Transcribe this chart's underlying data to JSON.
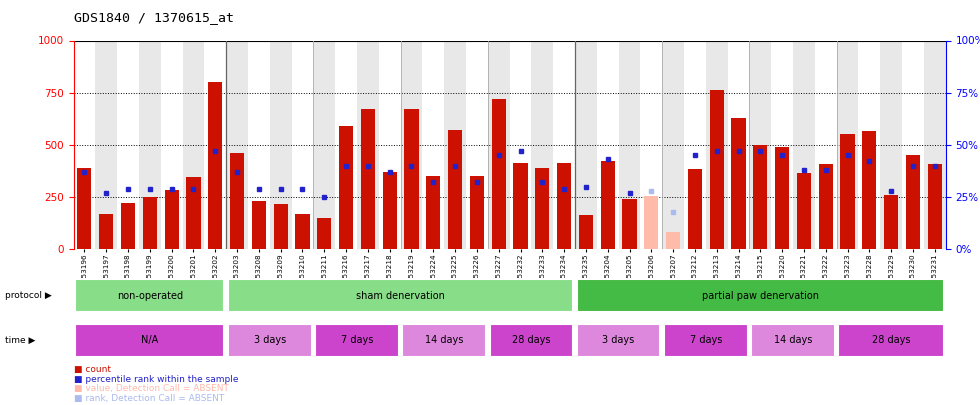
{
  "title": "GDS1840 / 1370615_at",
  "samples": [
    "GSM53196",
    "GSM53197",
    "GSM53198",
    "GSM53199",
    "GSM53200",
    "GSM53201",
    "GSM53202",
    "GSM53203",
    "GSM53208",
    "GSM53209",
    "GSM53210",
    "GSM53211",
    "GSM53216",
    "GSM53217",
    "GSM53218",
    "GSM53219",
    "GSM53224",
    "GSM53225",
    "GSM53226",
    "GSM53227",
    "GSM53232",
    "GSM53233",
    "GSM53234",
    "GSM53235",
    "GSM53204",
    "GSM53205",
    "GSM53206",
    "GSM53207",
    "GSM53212",
    "GSM53213",
    "GSM53214",
    "GSM53215",
    "GSM53220",
    "GSM53221",
    "GSM53222",
    "GSM53223",
    "GSM53228",
    "GSM53229",
    "GSM53230",
    "GSM53231"
  ],
  "count": [
    390,
    170,
    220,
    250,
    285,
    345,
    800,
    460,
    230,
    215,
    170,
    150,
    590,
    670,
    370,
    670,
    350,
    570,
    350,
    720,
    415,
    390,
    415,
    165,
    420,
    240,
    255,
    80,
    385,
    765,
    630,
    500,
    490,
    365,
    410,
    550,
    565,
    260,
    450,
    410
  ],
  "rank": [
    370,
    270,
    290,
    290,
    290,
    290,
    470,
    370,
    290,
    290,
    290,
    250,
    400,
    400,
    370,
    400,
    320,
    400,
    320,
    450,
    470,
    320,
    290,
    300,
    430,
    270,
    280,
    180,
    450,
    470,
    470,
    470,
    450,
    380,
    380,
    450,
    420,
    280,
    400,
    400
  ],
  "absent_indices": [
    26,
    27
  ],
  "bar_color_normal": "#cc1100",
  "bar_color_absent": "#ffbbaa",
  "rank_color_normal": "#2222cc",
  "rank_color_absent": "#aabbee",
  "ylim_left": [
    0,
    1000
  ],
  "yticks_left": [
    0,
    250,
    500,
    750,
    1000
  ],
  "yticks_right": [
    0,
    25,
    50,
    75,
    100
  ],
  "bg_colors": [
    "#ffffff",
    "#e8e8e8"
  ],
  "dotted_lines": [
    250,
    500,
    750
  ],
  "proto_labels": [
    "non-operated",
    "sham denervation",
    "partial paw denervation"
  ],
  "proto_starts": [
    0,
    7,
    23
  ],
  "proto_ends": [
    7,
    23,
    40
  ],
  "proto_colors": [
    "#88dd88",
    "#88dd88",
    "#44bb44"
  ],
  "time_labels": [
    "N/A",
    "3 days",
    "7 days",
    "14 days",
    "28 days",
    "3 days",
    "7 days",
    "14 days",
    "28 days"
  ],
  "time_starts": [
    0,
    7,
    11,
    15,
    19,
    23,
    27,
    31,
    35
  ],
  "time_ends": [
    7,
    11,
    15,
    19,
    23,
    27,
    31,
    35,
    40
  ],
  "time_colors": [
    "#cc44cc",
    "#dd88dd",
    "#cc44cc",
    "#dd88dd",
    "#cc44cc",
    "#dd88dd",
    "#cc44cc",
    "#dd88dd",
    "#cc44cc"
  ],
  "legend_items": [
    {
      "text": "count",
      "color": "#cc1100"
    },
    {
      "text": "percentile rank within the sample",
      "color": "#2222cc"
    },
    {
      "text": "value, Detection Call = ABSENT",
      "color": "#ffbbaa"
    },
    {
      "text": "rank, Detection Call = ABSENT",
      "color": "#aabbee"
    }
  ]
}
